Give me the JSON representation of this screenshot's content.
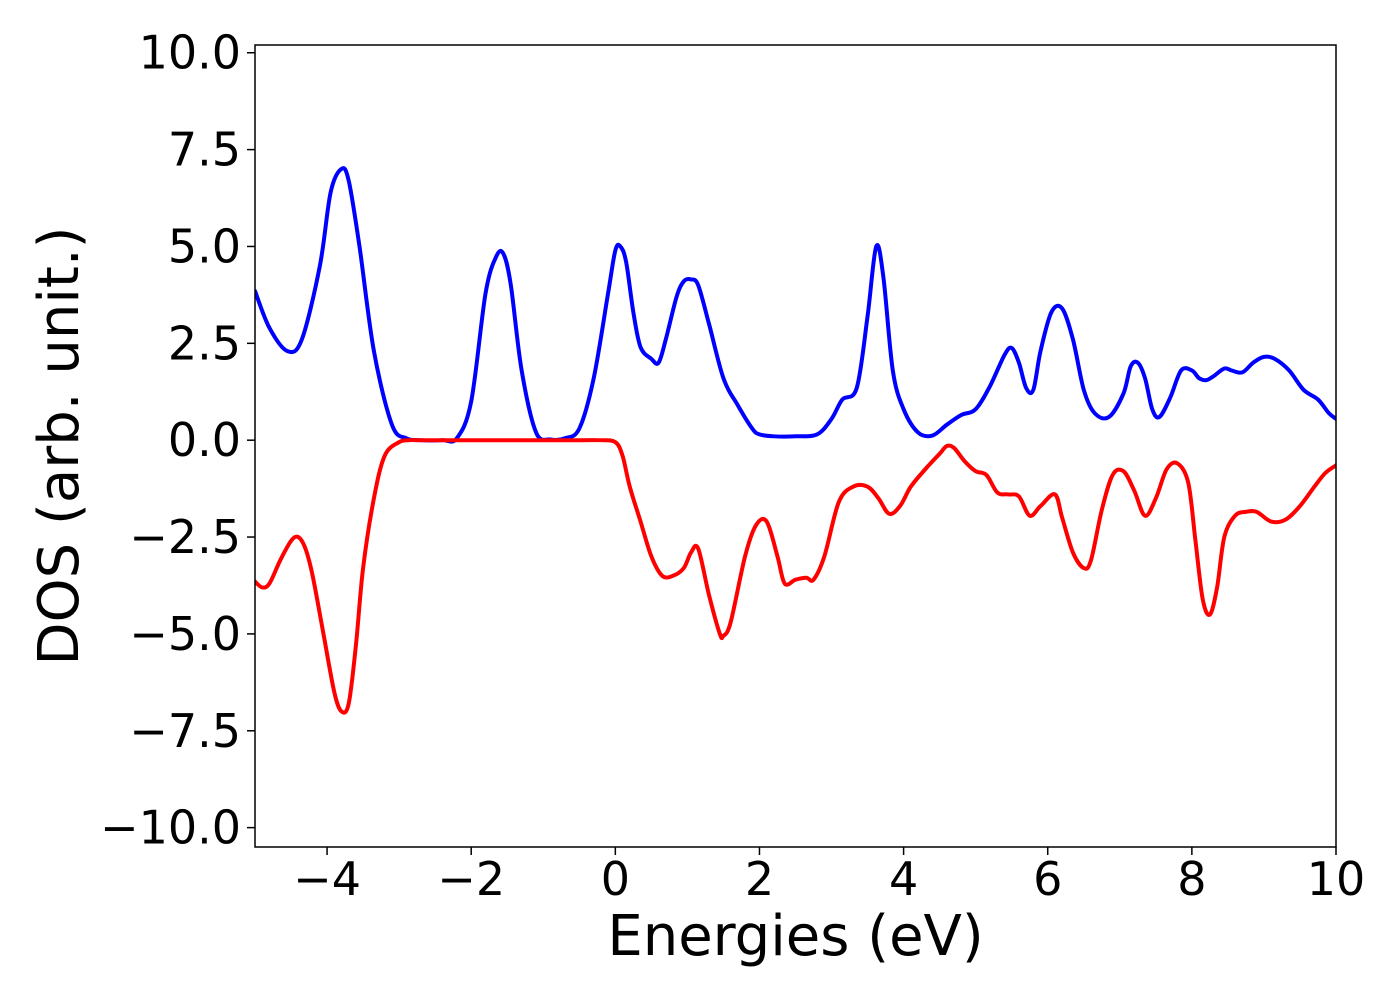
{
  "chart_data": {
    "type": "line",
    "title": "",
    "xlabel": "Energies (eV)",
    "ylabel": "DOS (arb. unit.)",
    "xlim": [
      -5,
      10
    ],
    "ylim": [
      -10.5,
      10.2
    ],
    "x_ticks": [
      -4,
      -2,
      0,
      2,
      4,
      6,
      8,
      10
    ],
    "x_tick_labels": [
      "−4",
      "−2",
      "0",
      "2",
      "4",
      "6",
      "8",
      "10"
    ],
    "y_ticks": [
      10,
      7.5,
      5,
      2.5,
      0,
      -2.5,
      -5,
      -7.5,
      -10
    ],
    "y_tick_labels": [
      "10.0",
      "7.5",
      "5.0",
      "2.5",
      "0.0",
      "−2.5",
      "−5.0",
      "−7.5",
      "−10.0"
    ],
    "grid": false,
    "legend": "none",
    "series": [
      {
        "color": "#0000ff",
        "x": [
          -5.0,
          -4.8,
          -4.55,
          -4.35,
          -4.1,
          -3.95,
          -3.8,
          -3.7,
          -3.55,
          -3.35,
          -3.1,
          -2.9,
          -2.7,
          -2.4,
          -2.2,
          -2.0,
          -1.8,
          -1.65,
          -1.55,
          -1.45,
          -1.3,
          -1.1,
          -0.9,
          -0.7,
          -0.5,
          -0.3,
          -0.1,
          0.0,
          0.07,
          0.15,
          0.25,
          0.35,
          0.5,
          0.6,
          0.7,
          0.85,
          0.95,
          1.05,
          1.15,
          1.3,
          1.5,
          1.7,
          1.9,
          2.0,
          2.2,
          2.5,
          2.8,
          3.0,
          3.15,
          3.35,
          3.5,
          3.62,
          3.72,
          3.85,
          4.0,
          4.2,
          4.4,
          4.6,
          4.8,
          5.0,
          5.2,
          5.4,
          5.5,
          5.6,
          5.7,
          5.8,
          5.9,
          6.05,
          6.2,
          6.35,
          6.5,
          6.65,
          6.85,
          7.05,
          7.15,
          7.25,
          7.35,
          7.45,
          7.55,
          7.7,
          7.85,
          8.0,
          8.1,
          8.2,
          8.3,
          8.45,
          8.55,
          8.7,
          8.85,
          9.0,
          9.15,
          9.35,
          9.55,
          9.75,
          9.9,
          10.0
        ],
        "y": [
          3.85,
          2.9,
          2.3,
          2.6,
          4.5,
          6.4,
          7.0,
          6.7,
          5.0,
          2.3,
          0.4,
          0.05,
          0.0,
          0.0,
          0.05,
          1.0,
          3.8,
          4.75,
          4.8,
          4.0,
          1.8,
          0.2,
          0.02,
          0.05,
          0.3,
          1.6,
          3.8,
          4.9,
          5.0,
          4.6,
          3.3,
          2.4,
          2.1,
          2.0,
          2.6,
          3.7,
          4.1,
          4.15,
          4.0,
          3.0,
          1.6,
          0.9,
          0.3,
          0.15,
          0.1,
          0.1,
          0.15,
          0.55,
          1.05,
          1.35,
          3.2,
          5.0,
          4.2,
          1.8,
          0.8,
          0.2,
          0.12,
          0.4,
          0.65,
          0.8,
          1.4,
          2.2,
          2.38,
          2.0,
          1.35,
          1.3,
          2.3,
          3.3,
          3.4,
          2.6,
          1.3,
          0.7,
          0.6,
          1.2,
          1.9,
          2.0,
          1.6,
          0.8,
          0.6,
          1.1,
          1.8,
          1.8,
          1.6,
          1.55,
          1.65,
          1.85,
          1.8,
          1.75,
          2.0,
          2.15,
          2.1,
          1.8,
          1.3,
          1.05,
          0.7,
          0.55
        ]
      },
      {
        "color": "#ff0000",
        "x": [
          -5.0,
          -4.9,
          -4.8,
          -4.65,
          -4.5,
          -4.4,
          -4.3,
          -4.2,
          -4.05,
          -3.9,
          -3.8,
          -3.7,
          -3.6,
          -3.5,
          -3.35,
          -3.2,
          -3.0,
          -2.85,
          -2.7,
          -2.5,
          -2.0,
          -1.5,
          -1.0,
          -0.5,
          -0.2,
          0.0,
          0.1,
          0.2,
          0.35,
          0.5,
          0.65,
          0.8,
          0.95,
          1.05,
          1.15,
          1.3,
          1.45,
          1.5,
          1.6,
          1.8,
          1.95,
          2.1,
          2.25,
          2.35,
          2.5,
          2.65,
          2.75,
          2.9,
          3.1,
          3.3,
          3.5,
          3.65,
          3.8,
          3.95,
          4.1,
          4.3,
          4.5,
          4.6,
          4.7,
          4.85,
          5.0,
          5.15,
          5.3,
          5.45,
          5.6,
          5.75,
          5.9,
          6.1,
          6.2,
          6.35,
          6.5,
          6.6,
          6.75,
          6.9,
          7.05,
          7.2,
          7.35,
          7.5,
          7.65,
          7.8,
          7.95,
          8.05,
          8.15,
          8.25,
          8.35,
          8.45,
          8.6,
          8.75,
          8.9,
          9.1,
          9.3,
          9.5,
          9.7,
          9.85,
          10.0
        ],
        "y": [
          -3.65,
          -3.8,
          -3.7,
          -3.1,
          -2.6,
          -2.5,
          -2.8,
          -3.5,
          -5.0,
          -6.5,
          -7.0,
          -6.8,
          -5.3,
          -3.3,
          -1.5,
          -0.4,
          -0.05,
          0.0,
          0.0,
          0.0,
          0.0,
          0.0,
          0.0,
          0.0,
          0.0,
          -0.05,
          -0.4,
          -1.2,
          -2.1,
          -3.0,
          -3.5,
          -3.5,
          -3.3,
          -2.9,
          -2.8,
          -4.0,
          -5.0,
          -5.05,
          -4.7,
          -3.0,
          -2.2,
          -2.1,
          -3.0,
          -3.7,
          -3.6,
          -3.55,
          -3.6,
          -3.0,
          -1.6,
          -1.2,
          -1.2,
          -1.5,
          -1.9,
          -1.7,
          -1.2,
          -0.75,
          -0.35,
          -0.15,
          -0.2,
          -0.55,
          -0.8,
          -0.9,
          -1.35,
          -1.4,
          -1.45,
          -1.95,
          -1.7,
          -1.4,
          -2.0,
          -2.9,
          -3.3,
          -3.1,
          -1.8,
          -0.9,
          -0.8,
          -1.3,
          -1.95,
          -1.5,
          -0.75,
          -0.6,
          -1.1,
          -2.6,
          -4.1,
          -4.5,
          -3.8,
          -2.5,
          -1.95,
          -1.85,
          -1.85,
          -2.1,
          -2.05,
          -1.7,
          -1.2,
          -0.85,
          -0.65
        ]
      }
    ]
  }
}
